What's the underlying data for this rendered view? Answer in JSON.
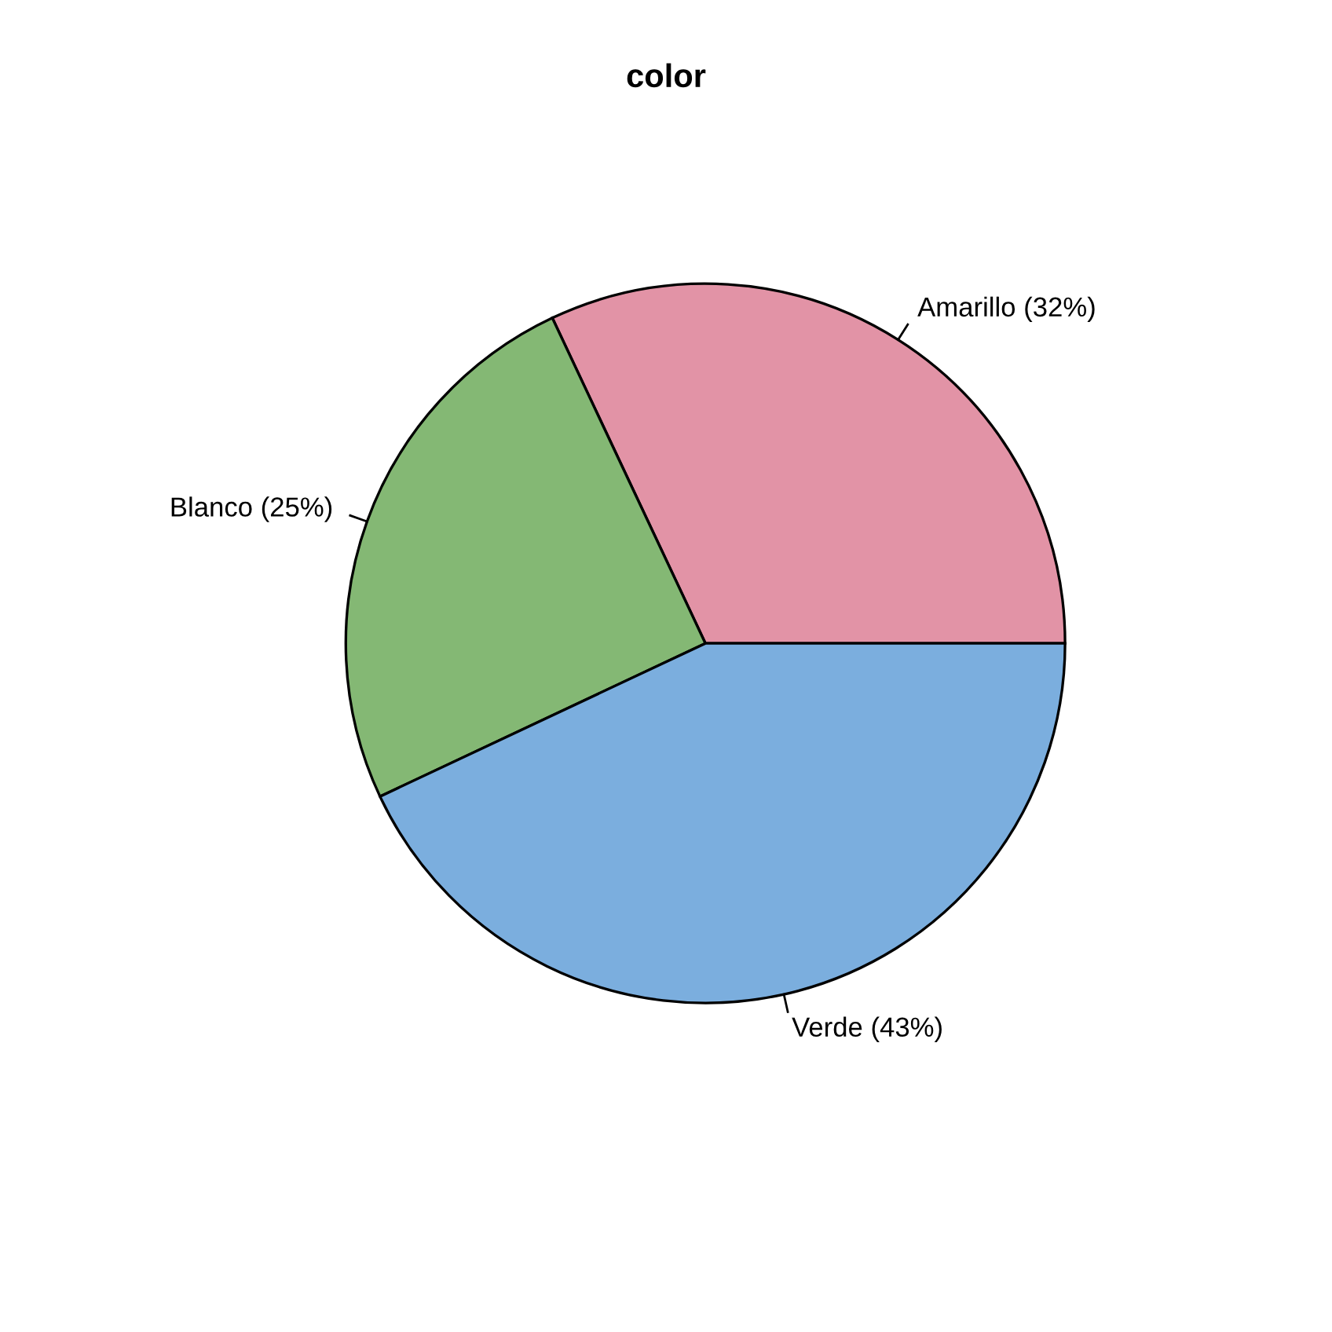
{
  "chart_data": {
    "type": "pie",
    "title": "color",
    "categories": [
      "Amarillo (32%)",
      "Blanco (25%)",
      "Verde (43%)"
    ],
    "values": [
      32,
      25,
      43
    ],
    "colors": [
      "#e293a6",
      "#84b874",
      "#7baede"
    ]
  }
}
